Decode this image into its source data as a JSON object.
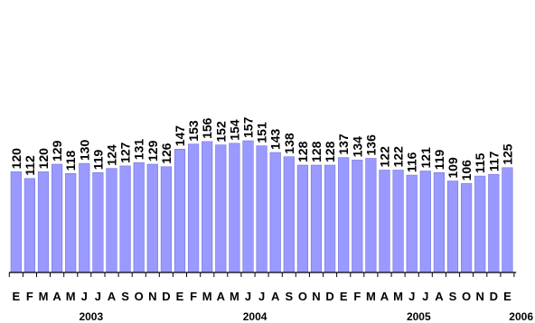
{
  "colors": {
    "bar": "#9999ff",
    "bar_stroke": "#7777dd",
    "axis": "#000000"
  },
  "chart_data": {
    "type": "bar",
    "categories": [
      "E",
      "F",
      "M",
      "A",
      "M",
      "J",
      "J",
      "A",
      "S",
      "O",
      "N",
      "D",
      "E",
      "F",
      "M",
      "A",
      "M",
      "J",
      "J",
      "A",
      "S",
      "O",
      "N",
      "D",
      "E",
      "F",
      "M",
      "A",
      "M",
      "J",
      "J",
      "A",
      "S",
      "O",
      "N",
      "D",
      "E"
    ],
    "values": [
      120,
      112,
      120,
      129,
      118,
      130,
      119,
      124,
      127,
      131,
      129,
      126,
      147,
      153,
      156,
      152,
      154,
      157,
      151,
      143,
      138,
      128,
      128,
      128,
      137,
      134,
      136,
      122,
      122,
      116,
      121,
      119,
      109,
      106,
      115,
      117,
      125
    ],
    "years": [
      {
        "label": "2003",
        "center_index": 5.5
      },
      {
        "label": "2004",
        "center_index": 17.5
      },
      {
        "label": "2005",
        "center_index": 29.5
      },
      {
        "label": "2006",
        "center_index": 36
      }
    ],
    "ylim": [
      0,
      160
    ],
    "grid": false,
    "data_labels": true
  }
}
